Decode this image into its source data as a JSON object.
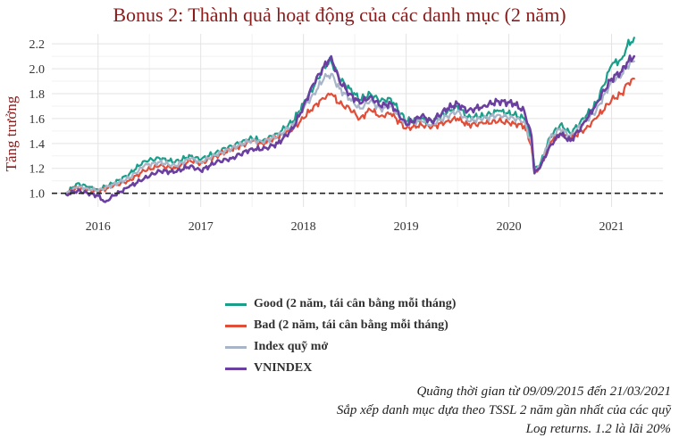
{
  "page": {
    "caption_lines": [
      "Quãng thời gian từ 09/09/2015 đến 21/03/2021",
      "Sắp xếp danh mục dựa theo TSSL 2 năm gần nhất của các quỹ",
      "Log returns. 1.2 là lãi 20%"
    ]
  },
  "chart_data": {
    "type": "line",
    "title": "Bonus 2: Thành quả hoạt động của các danh mục (2 năm)",
    "xlabel": "",
    "ylabel": "Tăng trưởng",
    "xlim": [
      2015.55,
      2021.5
    ],
    "ylim": [
      0.89,
      2.28
    ],
    "x_ticks": [
      2016,
      2017,
      2018,
      2019,
      2020,
      2021
    ],
    "x_tick_labels": [
      "2016",
      "2017",
      "2018",
      "2019",
      "2020",
      "2021"
    ],
    "y_ticks": [
      1.0,
      1.2,
      1.4,
      1.6,
      1.8,
      2.0,
      2.2
    ],
    "y_tick_labels": [
      "1.0",
      "1.2",
      "1.4",
      "1.6",
      "1.8",
      "2.0",
      "2.2"
    ],
    "grid": true,
    "reference_line": {
      "y": 1.0,
      "style": "dashed",
      "color": "#222222"
    },
    "legend_position": "bottom",
    "series": [
      {
        "name": "Good (2 năm, tái cân bằng mỗi tháng)",
        "color": "#1a9e8a",
        "x": [
          2015.69,
          2015.8,
          2015.9,
          2016.0,
          2016.15,
          2016.3,
          2016.45,
          2016.6,
          2016.75,
          2016.9,
          2017.0,
          2017.15,
          2017.3,
          2017.5,
          2017.6,
          2017.75,
          2017.9,
          2018.0,
          2018.1,
          2018.2,
          2018.27,
          2018.35,
          2018.45,
          2018.55,
          2018.65,
          2018.75,
          2018.85,
          2019.0,
          2019.15,
          2019.25,
          2019.4,
          2019.5,
          2019.6,
          2019.75,
          2019.9,
          2020.05,
          2020.15,
          2020.22,
          2020.25,
          2020.3,
          2020.4,
          2020.5,
          2020.6,
          2020.75,
          2020.85,
          2021.0,
          2021.1,
          2021.15,
          2021.22
        ],
        "y": [
          1.0,
          1.08,
          1.05,
          1.03,
          1.08,
          1.15,
          1.26,
          1.28,
          1.25,
          1.3,
          1.27,
          1.33,
          1.38,
          1.44,
          1.42,
          1.48,
          1.58,
          1.72,
          1.85,
          2.02,
          2.06,
          1.92,
          1.84,
          1.75,
          1.8,
          1.74,
          1.76,
          1.58,
          1.6,
          1.57,
          1.65,
          1.7,
          1.61,
          1.62,
          1.66,
          1.63,
          1.6,
          1.42,
          1.2,
          1.22,
          1.45,
          1.55,
          1.48,
          1.62,
          1.72,
          2.03,
          2.08,
          2.18,
          2.25
        ]
      },
      {
        "name": "Bad (2 năm, tái cân bằng mỗi tháng)",
        "color": "#e04e39",
        "x": [
          2015.69,
          2015.8,
          2015.9,
          2016.0,
          2016.15,
          2016.3,
          2016.45,
          2016.6,
          2016.75,
          2016.9,
          2017.0,
          2017.15,
          2017.3,
          2017.5,
          2017.6,
          2017.75,
          2017.9,
          2018.0,
          2018.1,
          2018.2,
          2018.27,
          2018.35,
          2018.45,
          2018.55,
          2018.65,
          2018.75,
          2018.85,
          2019.0,
          2019.15,
          2019.25,
          2019.4,
          2019.5,
          2019.6,
          2019.75,
          2019.9,
          2020.05,
          2020.15,
          2020.22,
          2020.25,
          2020.3,
          2020.4,
          2020.5,
          2020.6,
          2020.75,
          2020.85,
          2021.0,
          2021.1,
          2021.15,
          2021.22
        ],
        "y": [
          1.0,
          1.04,
          1.03,
          1.01,
          1.06,
          1.1,
          1.18,
          1.22,
          1.2,
          1.26,
          1.24,
          1.3,
          1.35,
          1.42,
          1.4,
          1.45,
          1.52,
          1.6,
          1.7,
          1.76,
          1.8,
          1.72,
          1.68,
          1.6,
          1.67,
          1.62,
          1.64,
          1.52,
          1.55,
          1.53,
          1.58,
          1.6,
          1.55,
          1.56,
          1.58,
          1.56,
          1.54,
          1.38,
          1.17,
          1.2,
          1.4,
          1.48,
          1.44,
          1.52,
          1.6,
          1.75,
          1.8,
          1.88,
          1.92
        ]
      },
      {
        "name": "Index quỹ mở",
        "color": "#a8b4c8",
        "x": [
          2015.69,
          2015.8,
          2015.9,
          2016.0,
          2016.15,
          2016.3,
          2016.45,
          2016.6,
          2016.75,
          2016.9,
          2017.0,
          2017.15,
          2017.3,
          2017.5,
          2017.6,
          2017.75,
          2017.9,
          2018.0,
          2018.1,
          2018.2,
          2018.27,
          2018.35,
          2018.45,
          2018.55,
          2018.65,
          2018.75,
          2018.85,
          2019.0,
          2019.15,
          2019.25,
          2019.4,
          2019.5,
          2019.6,
          2019.75,
          2019.9,
          2020.05,
          2020.15,
          2020.22,
          2020.25,
          2020.3,
          2020.4,
          2020.5,
          2020.6,
          2020.75,
          2020.85,
          2021.0,
          2021.1,
          2021.15,
          2021.22
        ],
        "y": [
          1.0,
          1.05,
          1.04,
          1.02,
          1.07,
          1.12,
          1.22,
          1.25,
          1.22,
          1.28,
          1.25,
          1.31,
          1.36,
          1.43,
          1.41,
          1.46,
          1.55,
          1.68,
          1.8,
          1.92,
          1.96,
          1.84,
          1.76,
          1.68,
          1.74,
          1.68,
          1.7,
          1.56,
          1.58,
          1.55,
          1.62,
          1.66,
          1.58,
          1.6,
          1.63,
          1.6,
          1.58,
          1.4,
          1.18,
          1.21,
          1.44,
          1.52,
          1.46,
          1.58,
          1.66,
          1.9,
          1.95,
          2.02,
          2.06
        ]
      },
      {
        "name": "VNINDEX",
        "color": "#6a3fa0",
        "x": [
          2015.69,
          2015.8,
          2015.9,
          2016.0,
          2016.07,
          2016.15,
          2016.3,
          2016.45,
          2016.6,
          2016.75,
          2016.9,
          2017.0,
          2017.15,
          2017.3,
          2017.5,
          2017.6,
          2017.75,
          2017.9,
          2018.0,
          2018.1,
          2018.2,
          2018.27,
          2018.35,
          2018.45,
          2018.55,
          2018.65,
          2018.75,
          2018.85,
          2019.0,
          2019.15,
          2019.25,
          2019.4,
          2019.5,
          2019.6,
          2019.75,
          2019.9,
          2020.05,
          2020.15,
          2020.22,
          2020.25,
          2020.3,
          2020.4,
          2020.5,
          2020.6,
          2020.75,
          2020.85,
          2021.0,
          2021.1,
          2021.15,
          2021.22
        ],
        "y": [
          0.99,
          1.02,
          1.0,
          0.98,
          0.93,
          0.98,
          1.05,
          1.12,
          1.18,
          1.17,
          1.22,
          1.18,
          1.25,
          1.28,
          1.36,
          1.35,
          1.4,
          1.52,
          1.7,
          1.88,
          2.02,
          2.1,
          1.9,
          1.8,
          1.72,
          1.78,
          1.7,
          1.72,
          1.55,
          1.62,
          1.58,
          1.68,
          1.72,
          1.66,
          1.7,
          1.74,
          1.72,
          1.66,
          1.46,
          1.16,
          1.2,
          1.38,
          1.48,
          1.42,
          1.58,
          1.72,
          1.92,
          1.98,
          2.05,
          2.1
        ]
      }
    ]
  }
}
